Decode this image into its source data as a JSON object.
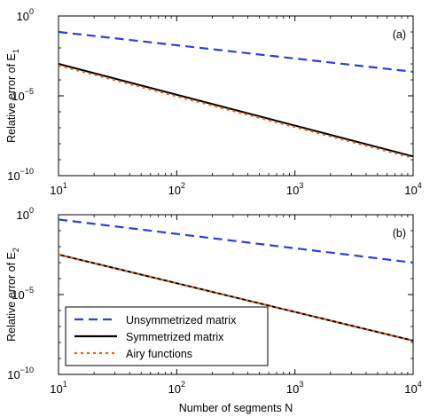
{
  "chart_data": [
    {
      "type": "line",
      "x_scale": "log",
      "y_scale": "log",
      "xlim": [
        10,
        10000
      ],
      "ylim": [
        1e-10,
        1
      ],
      "x_ticks": [
        {
          "base": "10",
          "exp": "1",
          "value": 10
        },
        {
          "base": "10",
          "exp": "2",
          "value": 100
        },
        {
          "base": "10",
          "exp": "3",
          "value": 1000
        },
        {
          "base": "10",
          "exp": "4",
          "value": 10000
        }
      ],
      "y_ticks": [
        {
          "base": "10",
          "exp": "0",
          "value": 1
        },
        {
          "base": "10",
          "exp": "−5",
          "value": 1e-05
        },
        {
          "base": "10",
          "exp": "−10",
          "value": 1e-10
        }
      ],
      "ylabel": {
        "main": "Relative error of E",
        "sub": "1"
      },
      "xlabel": "",
      "panel_label": "(a)",
      "grid": false,
      "series": [
        {
          "key": "unsym",
          "x": [
            10,
            10000
          ],
          "y": [
            0.1,
            0.00032
          ],
          "color": "#2a3fe0",
          "dash": "10,6"
        },
        {
          "key": "sym",
          "x": [
            10,
            10000
          ],
          "y": [
            0.001,
            1.6e-09
          ],
          "color": "#000000",
          "dash": ""
        },
        {
          "key": "airy",
          "x": [
            10,
            10000
          ],
          "y": [
            0.0008,
            1.3e-09
          ],
          "color": "#e8601c",
          "dash": "3,4"
        }
      ]
    },
    {
      "type": "line",
      "x_scale": "log",
      "y_scale": "log",
      "xlim": [
        10,
        10000
      ],
      "ylim": [
        1e-10,
        1
      ],
      "x_ticks": [
        {
          "base": "10",
          "exp": "1",
          "value": 10
        },
        {
          "base": "10",
          "exp": "2",
          "value": 100
        },
        {
          "base": "10",
          "exp": "3",
          "value": 1000
        },
        {
          "base": "10",
          "exp": "4",
          "value": 10000
        }
      ],
      "y_ticks": [
        {
          "base": "10",
          "exp": "0",
          "value": 1
        },
        {
          "base": "10",
          "exp": "−5",
          "value": 1e-05
        },
        {
          "base": "10",
          "exp": "−10",
          "value": 1e-10
        }
      ],
      "ylabel": {
        "main": "Relative error of E",
        "sub": "2"
      },
      "xlabel": "Number of segments N",
      "panel_label": "(b)",
      "grid": false,
      "legend_position": "bottom-left",
      "legend": [
        {
          "label": "Unsymmetrized matrix",
          "series": "unsym"
        },
        {
          "label": "Symmetrized matrix",
          "series": "sym"
        },
        {
          "label": "Airy functions",
          "series": "airy"
        }
      ],
      "series": [
        {
          "key": "unsym",
          "x": [
            10,
            10000
          ],
          "y": [
            0.5,
            0.001
          ],
          "color": "#2a3fe0",
          "dash": "10,6"
        },
        {
          "key": "sym",
          "x": [
            10,
            10000
          ],
          "y": [
            0.0032,
            1.3e-08
          ],
          "color": "#000000",
          "dash": ""
        },
        {
          "key": "airy",
          "x": [
            10,
            10000
          ],
          "y": [
            0.0032,
            1.3e-08
          ],
          "color": "#e8601c",
          "dash": "3,4"
        }
      ]
    }
  ]
}
